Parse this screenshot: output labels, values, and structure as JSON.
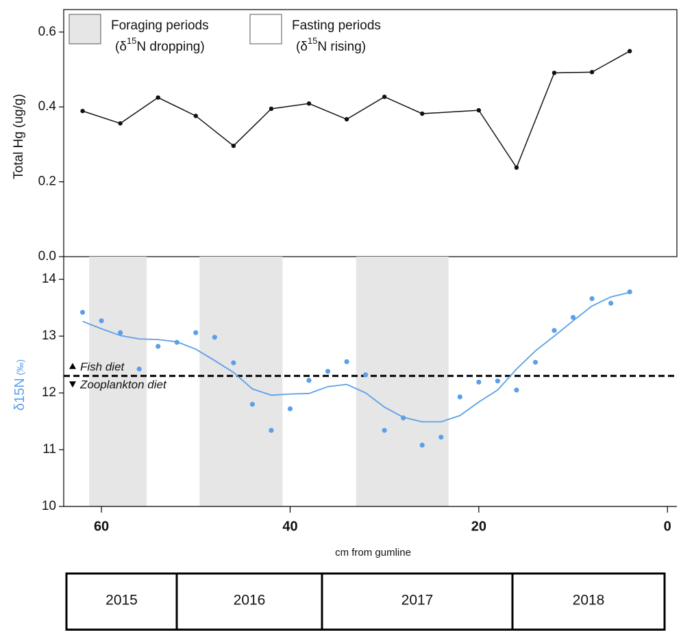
{
  "chart_data": [
    {
      "type": "line",
      "ylabel": "Total Hg (ug/g)",
      "xlim": [
        64,
        -1
      ],
      "ylim": [
        0,
        0.66
      ],
      "yticks": [
        {
          "value": 0,
          "label": "0.0"
        },
        0.2,
        0.4,
        0.6
      ],
      "legend": [
        {
          "name": "Foraging periods",
          "color": "#e6e6e6",
          "pre": "(δ",
          "sup": "15",
          "post": "N dropping)"
        },
        {
          "name": "Fasting periods",
          "color": "#ffffff",
          "pre": "(δ",
          "sup": "15",
          "post": "N rising)"
        }
      ],
      "x": [
        62,
        58,
        54,
        50,
        46,
        42,
        38,
        34,
        30,
        26,
        20,
        16,
        12,
        8,
        4
      ],
      "series": [
        {
          "color": "#111111",
          "values": [
            0.389,
            0.356,
            0.425,
            0.376,
            0.296,
            0.395,
            0.409,
            0.367,
            0.427,
            0.382,
            0.391,
            0.238,
            0.491,
            0.493,
            0.549
          ]
        }
      ]
    },
    {
      "type": "scatter",
      "ylabel": "δ15N",
      "ylabel_unit": "(‰)",
      "label_color": "#5aa0e8",
      "xlabel": "cm from gumline",
      "xlim": [
        64,
        -1
      ],
      "ylim": [
        10,
        14.4
      ],
      "xticks": [
        60,
        40,
        20,
        0
      ],
      "yticks": [
        10,
        11,
        12,
        13,
        14
      ],
      "bands": [
        [
          61.3,
          55.2
        ],
        [
          49.6,
          40.8
        ],
        [
          33.0,
          23.2
        ]
      ],
      "band_color": "#e6e6e6",
      "hline": 12.3,
      "hline_labels": [
        "Fish diet",
        "Zooplankton diet"
      ],
      "x": [
        62,
        60,
        58,
        56,
        54,
        52,
        50,
        48,
        46,
        44,
        42,
        40,
        38,
        36,
        34,
        32,
        30,
        28,
        26,
        24,
        22,
        20,
        18,
        16,
        14,
        12,
        10,
        8,
        6,
        4
      ],
      "series": [
        {
          "color": "#5aa0e8",
          "style": "points",
          "values": [
            13.42,
            13.27,
            13.06,
            12.42,
            12.82,
            12.89,
            13.06,
            12.98,
            12.53,
            11.8,
            11.34,
            11.72,
            12.22,
            12.38,
            12.55,
            12.32,
            11.34,
            11.56,
            11.08,
            11.22,
            11.93,
            12.19,
            12.21,
            12.05,
            12.54,
            13.1,
            13.33,
            13.66,
            13.58,
            13.78
          ]
        },
        {
          "color": "#5aa0e8",
          "style": "line",
          "values": [
            13.26,
            13.13,
            13.01,
            12.95,
            12.94,
            12.9,
            12.77,
            12.57,
            12.36,
            12.07,
            11.96,
            11.98,
            11.99,
            12.11,
            12.15,
            12.0,
            11.75,
            11.57,
            11.49,
            11.49,
            11.6,
            11.84,
            12.05,
            12.42,
            12.74,
            13.0,
            13.27,
            13.53,
            13.69,
            13.77
          ]
        }
      ]
    }
  ],
  "years_table": {
    "cells": [
      "2015",
      "2016",
      "2017",
      "2018"
    ]
  }
}
